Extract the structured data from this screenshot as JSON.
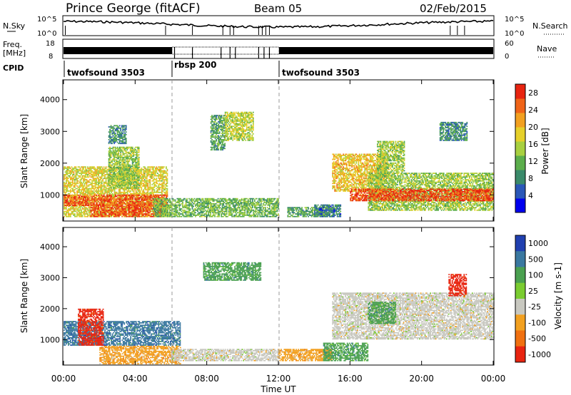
{
  "header": {
    "station": "Prince George (fitACF)",
    "beam": "Beam 05",
    "date": "02/Feb/2015"
  },
  "sky_panel": {
    "left_label": "N.Sky",
    "right_label": "N.Search",
    "left_ticks": [
      "10^5",
      "10^0"
    ],
    "right_ticks": [
      "10^5",
      "10^0"
    ]
  },
  "freq_panel": {
    "left_label_1": "Freq.",
    "left_label_2": "[MHz]",
    "right_label": "Nave",
    "left_ticks": [
      "18",
      "8"
    ],
    "right_ticks": [
      "60",
      "0"
    ]
  },
  "cpid": {
    "label": "CPID",
    "segments": [
      {
        "name": "twofsound 3503",
        "start_h": 0,
        "end_h": 6
      },
      {
        "name": "rbsp 200",
        "start_h": 6,
        "end_h": 12
      },
      {
        "name": "twofsound 3503",
        "start_h": 12,
        "end_h": 24
      }
    ]
  },
  "chart_data": [
    {
      "type": "heatmap",
      "title": "",
      "xlabel": "",
      "ylabel": "Slant Range [km]",
      "xlim_hours": [
        0,
        24
      ],
      "ylim": [
        200,
        4600
      ],
      "yticks": [
        1000,
        2000,
        3000,
        4000
      ],
      "colorbar_label": "Power [dB]",
      "colorbar_ticks": [
        4,
        8,
        12,
        16,
        20,
        24,
        28
      ],
      "colorbar_range": [
        0,
        30
      ],
      "colors": [
        "#0000ee",
        "#2a57b8",
        "#3a8a6a",
        "#5cae4c",
        "#a8d040",
        "#e6d02a",
        "#f2a020",
        "#f06418",
        "#e82410"
      ],
      "regions": [
        {
          "h0": 0.0,
          "h1": 5.8,
          "r0": 300,
          "r1": 1900,
          "level": 18
        },
        {
          "h0": 0.0,
          "h1": 5.8,
          "r0": 650,
          "r1": 1000,
          "level": 27
        },
        {
          "h0": 1.5,
          "h1": 5.5,
          "r0": 300,
          "r1": 700,
          "level": 28
        },
        {
          "h0": 2.5,
          "h1": 4.2,
          "r0": 1200,
          "r1": 2500,
          "level": 14
        },
        {
          "h0": 2.5,
          "h1": 3.5,
          "r0": 2600,
          "r1": 3200,
          "level": 8
        },
        {
          "h0": 5.0,
          "h1": 12.0,
          "r0": 300,
          "r1": 900,
          "level": 12
        },
        {
          "h0": 8.2,
          "h1": 9.0,
          "r0": 2400,
          "r1": 3500,
          "level": 10
        },
        {
          "h0": 9.0,
          "h1": 10.6,
          "r0": 2700,
          "r1": 3600,
          "level": 16
        },
        {
          "h0": 12.5,
          "h1": 15.0,
          "r0": 300,
          "r1": 600,
          "level": 10
        },
        {
          "h0": 14.0,
          "h1": 15.5,
          "r0": 300,
          "r1": 700,
          "level": 6
        },
        {
          "h0": 15.0,
          "h1": 18.0,
          "r0": 1100,
          "r1": 2300,
          "level": 20
        },
        {
          "h0": 17.0,
          "h1": 24.0,
          "r0": 500,
          "r1": 1700,
          "level": 14
        },
        {
          "h0": 16.0,
          "h1": 24.0,
          "r0": 800,
          "r1": 1200,
          "level": 28
        },
        {
          "h0": 17.5,
          "h1": 19.0,
          "r0": 1700,
          "r1": 2700,
          "level": 14
        },
        {
          "h0": 21.0,
          "h1": 22.5,
          "r0": 2700,
          "r1": 3300,
          "level": 8
        }
      ]
    },
    {
      "type": "heatmap",
      "title": "",
      "xlabel": "Time UT",
      "ylabel": "Slant Range [km]",
      "xlim_hours": [
        0,
        24
      ],
      "ylim": [
        200,
        4600
      ],
      "yticks": [
        1000,
        2000,
        3000,
        4000
      ],
      "xtick_labels": [
        "00:00",
        "04:00",
        "08:00",
        "12:00",
        "16:00",
        "20:00",
        "00:00"
      ],
      "colorbar_label": "Velocity [m s-1]",
      "colorbar_ticks": [
        1000,
        500,
        100,
        25,
        -25,
        -100,
        -500,
        -1000
      ],
      "colors": [
        "#2040b0",
        "#3a78a0",
        "#4aa050",
        "#7acc30",
        "#c8c8c0",
        "#f2a020",
        "#f07010",
        "#e82410"
      ],
      "regions": [
        {
          "h0": 0.0,
          "h1": 6.5,
          "r0": 800,
          "r1": 1600,
          "level": 3
        },
        {
          "h0": 2.0,
          "h1": 6.5,
          "r0": 200,
          "r1": 800,
          "level": -4
        },
        {
          "h0": 0.8,
          "h1": 2.2,
          "r0": 800,
          "r1": 2000,
          "level": -3
        },
        {
          "h0": 6.0,
          "h1": 12.0,
          "r0": 300,
          "r1": 700,
          "level": -1
        },
        {
          "h0": 7.8,
          "h1": 11.0,
          "r0": 2900,
          "r1": 3500,
          "level": 2
        },
        {
          "h0": 12.0,
          "h1": 15.0,
          "r0": 300,
          "r1": 700,
          "level": -2
        },
        {
          "h0": 15.0,
          "h1": 24.0,
          "r0": 1000,
          "r1": 2500,
          "level": 0
        },
        {
          "h0": 14.5,
          "h1": 17.0,
          "r0": 300,
          "r1": 900,
          "level": 2
        },
        {
          "h0": 17.0,
          "h1": 18.5,
          "r0": 1500,
          "r1": 2200,
          "level": 2
        },
        {
          "h0": 21.5,
          "h1": 22.5,
          "r0": 2400,
          "r1": 3100,
          "level": -3
        }
      ]
    }
  ]
}
